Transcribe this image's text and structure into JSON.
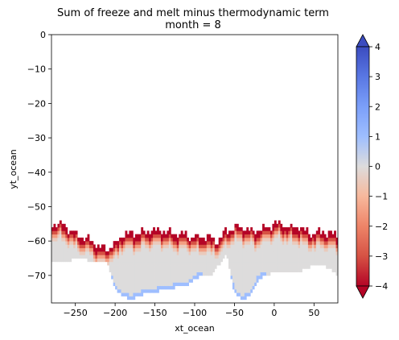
{
  "chart_data": {
    "type": "heatmap",
    "title_line1": "Sum of freeze and melt minus thermodynamic term",
    "title_line2": "month = 8",
    "xlabel": "xt_ocean",
    "ylabel": "yt_ocean",
    "xlim": [
      -280,
      80
    ],
    "ylim": [
      -78,
      0
    ],
    "x_ticks": [
      -250,
      -200,
      -150,
      -100,
      -50,
      0,
      50
    ],
    "x_tick_labels": [
      "−250",
      "−200",
      "−150",
      "−100",
      "−50",
      "0",
      "50"
    ],
    "y_ticks": [
      0,
      -10,
      -20,
      -30,
      -40,
      -50,
      -60,
      -70
    ],
    "y_tick_labels": [
      "0",
      "−10",
      "−20",
      "−30",
      "−40",
      "−50",
      "−60",
      "−70"
    ],
    "colorbar": {
      "colormap": "coolwarm_reversed",
      "vmin": -4,
      "vmax": 4,
      "extend": "both",
      "ticks": [
        4,
        3,
        2,
        1,
        0,
        -1,
        -2,
        -3,
        -4
      ],
      "tick_labels": [
        "4",
        "3",
        "2",
        "1",
        "0",
        "−1",
        "−2",
        "−3",
        "−4"
      ]
    },
    "ice_edge_profile": {
      "x": [
        -280,
        -270,
        -260,
        -250,
        -240,
        -230,
        -220,
        -210,
        -200,
        -190,
        -180,
        -170,
        -160,
        -150,
        -140,
        -130,
        -120,
        -110,
        -100,
        -90,
        -80,
        -70,
        -60,
        -50,
        -40,
        -30,
        -20,
        -10,
        0,
        10,
        20,
        30,
        40,
        50,
        60,
        70,
        80
      ],
      "north_lat": [
        -55,
        -55,
        -56,
        -58,
        -59,
        -60,
        -62,
        -62,
        -61,
        -58,
        -58,
        -58,
        -57,
        -57,
        -57,
        -58,
        -58,
        -58,
        -59,
        -59,
        -59,
        -60,
        -57,
        -56,
        -56,
        -57,
        -57,
        -56,
        -55,
        -55,
        -56,
        -56,
        -57,
        -58,
        -57,
        -58,
        -58
      ],
      "south_lat": [
        -66,
        -66,
        -66,
        -65,
        -65,
        -66,
        -66,
        -66,
        -74,
        -76,
        -77,
        -76,
        -75,
        -75,
        -74,
        -74,
        -73,
        -73,
        -71,
        -70,
        -70,
        -67,
        -64,
        -75,
        -77,
        -76,
        -71,
        -70,
        -69,
        -69,
        -69,
        -69,
        -68,
        -67,
        -67,
        -68,
        -70
      ],
      "edge_value": -4,
      "interior_value": 0
    }
  }
}
